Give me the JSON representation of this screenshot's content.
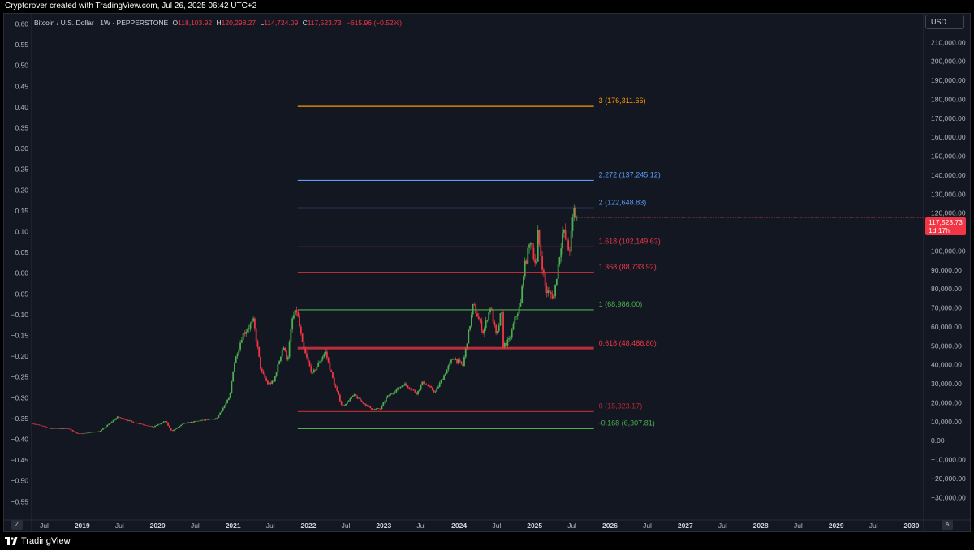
{
  "header": {
    "credit": "Cryptorover created with TradingView.com, Jul 26, 2025 06:42 UTC+2"
  },
  "legend": {
    "symbol": "Bitcoin / U.S. Dollar · 1W · PEPPERSTONE",
    "open_label": "O",
    "open": "118,103.92",
    "high_label": "H",
    "high": "120,298.27",
    "low_label": "L",
    "low": "114,724.09",
    "close_label": "C",
    "close": "117,523.73",
    "change": "−615.96 (−0.52%)"
  },
  "price_scale": {
    "currency": "USD",
    "current_price": "117,523.73",
    "countdown": "1d 17h"
  },
  "left_scale": {
    "ticks": [
      "0.60",
      "0.55",
      "0.50",
      "0.45",
      "0.40",
      "0.35",
      "0.30",
      "0.25",
      "0.20",
      "0.15",
      "0.10",
      "0.05",
      "0.00",
      "−0.05",
      "−0.10",
      "−0.15",
      "−0.20",
      "−0.25",
      "−0.30",
      "−0.35",
      "−0.40",
      "−0.45",
      "−0.50",
      "−0.55"
    ]
  },
  "buttons": {
    "z": "Z",
    "a": "A"
  },
  "footer": {
    "brand": "TradingView"
  },
  "colors": {
    "background": "#131722",
    "up_candle": "#4caf50",
    "down_candle": "#f23645",
    "fib_orange": "#ff9800",
    "fib_blue": "#5b9cf6",
    "fib_red": "#f23645",
    "fib_green": "#4caf50",
    "fib_zero": "#b22833"
  },
  "chart_data": {
    "type": "candlestick",
    "title": "Bitcoin / U.S. Dollar · 1W · PEPPERSTONE",
    "y_axis_right": {
      "unit": "USD",
      "ylim": [
        -35000,
        220000
      ],
      "ticks": [
        210000,
        200000,
        190000,
        180000,
        170000,
        160000,
        150000,
        140000,
        130000,
        120000,
        110000,
        100000,
        90000,
        80000,
        70000,
        60000,
        50000,
        40000,
        30000,
        20000,
        10000,
        0,
        -10000,
        -20000,
        -30000
      ],
      "tick_labels": [
        "210,000.00",
        "200,000.00",
        "190,000.00",
        "180,000.00",
        "170,000.00",
        "160,000.00",
        "150,000.00",
        "140,000.00",
        "130,000.00",
        "120,000.00",
        "110,000.00",
        "100,000.00",
        "90,000.00",
        "80,000.00",
        "70,000.00",
        "60,000.00",
        "50,000.00",
        "40,000.00",
        "30,000.00",
        "20,000.00",
        "10,000.00",
        "0.00",
        "−10,000.00",
        "−20,000.00",
        "−30,000.00"
      ]
    },
    "x_axis": {
      "range": [
        "2018-05-01",
        "2030-03-01"
      ],
      "ticks": [
        {
          "date": "2018-07-01",
          "label": "Jul",
          "bold": false
        },
        {
          "date": "2019-01-01",
          "label": "2019",
          "bold": true
        },
        {
          "date": "2019-07-01",
          "label": "Jul",
          "bold": false
        },
        {
          "date": "2020-01-01",
          "label": "2020",
          "bold": true
        },
        {
          "date": "2020-07-01",
          "label": "Jul",
          "bold": false
        },
        {
          "date": "2021-01-01",
          "label": "2021",
          "bold": true
        },
        {
          "date": "2021-07-01",
          "label": "Jul",
          "bold": false
        },
        {
          "date": "2022-01-01",
          "label": "2022",
          "bold": true
        },
        {
          "date": "2022-07-01",
          "label": "Jul",
          "bold": false
        },
        {
          "date": "2023-01-01",
          "label": "2023",
          "bold": true
        },
        {
          "date": "2023-07-01",
          "label": "Jul",
          "bold": false
        },
        {
          "date": "2024-01-01",
          "label": "2024",
          "bold": true
        },
        {
          "date": "2024-07-01",
          "label": "Jul",
          "bold": false
        },
        {
          "date": "2025-01-01",
          "label": "2025",
          "bold": true
        },
        {
          "date": "2025-07-01",
          "label": "Jul",
          "bold": false
        },
        {
          "date": "2026-01-01",
          "label": "2026",
          "bold": true
        },
        {
          "date": "2026-07-01",
          "label": "Jul",
          "bold": false
        },
        {
          "date": "2027-01-01",
          "label": "2027",
          "bold": true
        },
        {
          "date": "2027-07-01",
          "label": "Jul",
          "bold": false
        },
        {
          "date": "2028-01-01",
          "label": "2028",
          "bold": true
        },
        {
          "date": "2028-07-01",
          "label": "Jul",
          "bold": false
        },
        {
          "date": "2029-01-01",
          "label": "2029",
          "bold": true
        },
        {
          "date": "2029-07-01",
          "label": "Jul",
          "bold": false
        },
        {
          "date": "2030-01-01",
          "label": "2030",
          "bold": true
        }
      ]
    },
    "price_path": [
      [
        "2018-05-01",
        9300
      ],
      [
        "2018-08-01",
        6500
      ],
      [
        "2018-11-01",
        6300
      ],
      [
        "2018-12-15",
        3500
      ],
      [
        "2019-04-01",
        5000
      ],
      [
        "2019-06-26",
        12500
      ],
      [
        "2019-09-01",
        10000
      ],
      [
        "2019-12-15",
        7200
      ],
      [
        "2020-02-12",
        10300
      ],
      [
        "2020-03-13",
        5000
      ],
      [
        "2020-05-10",
        9000
      ],
      [
        "2020-07-25",
        10500
      ],
      [
        "2020-10-15",
        11500
      ],
      [
        "2020-12-20",
        23000
      ],
      [
        "2021-01-08",
        40000
      ],
      [
        "2021-02-20",
        56000
      ],
      [
        "2021-04-14",
        63000
      ],
      [
        "2021-05-20",
        37000
      ],
      [
        "2021-06-22",
        30000
      ],
      [
        "2021-07-20",
        31000
      ],
      [
        "2021-09-05",
        50000
      ],
      [
        "2021-09-25",
        42000
      ],
      [
        "2021-10-20",
        65000
      ],
      [
        "2021-11-10",
        68500
      ],
      [
        "2021-12-10",
        49000
      ],
      [
        "2022-01-24",
        35000
      ],
      [
        "2022-03-28",
        47000
      ],
      [
        "2022-05-10",
        30000
      ],
      [
        "2022-06-18",
        18000
      ],
      [
        "2022-08-14",
        24000
      ],
      [
        "2022-10-01",
        19500
      ],
      [
        "2022-11-10",
        16500
      ],
      [
        "2022-12-20",
        16800
      ],
      [
        "2023-01-20",
        23000
      ],
      [
        "2023-04-14",
        30000
      ],
      [
        "2023-06-15",
        25000
      ],
      [
        "2023-07-14",
        31000
      ],
      [
        "2023-09-11",
        25500
      ],
      [
        "2023-10-24",
        34500
      ],
      [
        "2023-12-08",
        44000
      ],
      [
        "2024-01-23",
        39500
      ],
      [
        "2024-02-28",
        62000
      ],
      [
        "2024-03-14",
        72000
      ],
      [
        "2024-05-01",
        57000
      ],
      [
        "2024-06-05",
        71000
      ],
      [
        "2024-07-05",
        54000
      ],
      [
        "2024-07-29",
        69500
      ],
      [
        "2024-08-05",
        50000
      ],
      [
        "2024-09-06",
        53000
      ],
      [
        "2024-10-01",
        64000
      ],
      [
        "2024-10-29",
        72000
      ],
      [
        "2024-11-12",
        89000
      ],
      [
        "2024-12-17",
        106000
      ],
      [
        "2025-01-13",
        91000
      ],
      [
        "2025-01-21",
        109000
      ],
      [
        "2025-02-28",
        79000
      ],
      [
        "2025-04-08",
        76000
      ],
      [
        "2025-05-22",
        111000
      ],
      [
        "2025-06-22",
        99000
      ],
      [
        "2025-07-14",
        122000
      ],
      [
        "2025-07-24",
        117524
      ]
    ],
    "fib_levels": [
      {
        "ratio": 3,
        "price": 176311.66,
        "label": "3 (176,311.66)",
        "color": "#ff9800"
      },
      {
        "ratio": 2.272,
        "price": 137245.12,
        "label": "2.272 (137,245.12)",
        "color": "#5b9cf6"
      },
      {
        "ratio": 2,
        "price": 122648.83,
        "label": "2 (122,648.83)",
        "color": "#5b9cf6"
      },
      {
        "ratio": 1.618,
        "price": 102149.63,
        "label": "1.618 (102,149.63)",
        "color": "#f23645"
      },
      {
        "ratio": 1.368,
        "price": 88733.92,
        "label": "1.368 (88,733.92)",
        "color": "#f23645"
      },
      {
        "ratio": 1,
        "price": 68986.0,
        "label": "1 (68,986.00)",
        "color": "#4caf50"
      },
      {
        "ratio": 0.618,
        "price": 48486.8,
        "label": "0.618 (48,486.80)",
        "color": "#f23645"
      },
      {
        "ratio": 0,
        "price": 15323.17,
        "label": "0 (15,323.17)",
        "color": "#b22833"
      },
      {
        "ratio": -0.168,
        "price": 6307.81,
        "label": "-0.168 (6,307.81)",
        "color": "#4caf50"
      }
    ],
    "fib_range_dates": [
      "2021-11-10",
      "2025-10-15"
    ],
    "overlay_level": {
      "price": 49200,
      "color": "#f23645"
    },
    "last_price": 117523.73
  }
}
